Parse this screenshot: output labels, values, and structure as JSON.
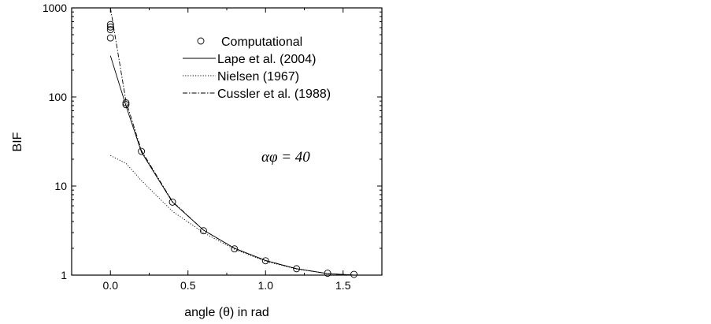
{
  "chart_data": {
    "type": "line",
    "title": "",
    "xlabel": "angle (θ) in rad",
    "ylabel": "BIF",
    "xlim": [
      -0.25,
      1.75
    ],
    "ylim": [
      1,
      1000
    ],
    "yscale": "log",
    "xticks": [
      0.0,
      0.5,
      1.0,
      1.5
    ],
    "xtick_labels": [
      "0.0",
      "0.5",
      "1.0",
      "1.5"
    ],
    "yticks": [
      1,
      10,
      100,
      1000
    ],
    "ytick_labels": [
      "1",
      "10",
      "100",
      "1000"
    ],
    "grid": false,
    "legend_position": "top-center",
    "annotation": "αφ = 40",
    "series": [
      {
        "name": "Computational",
        "style": "open-circle",
        "color": "#000000",
        "points": [
          {
            "x": 0.0,
            "y": 650
          },
          {
            "x": 0.0,
            "y": 610
          },
          {
            "x": 0.0,
            "y": 570
          },
          {
            "x": 0.0,
            "y": 460
          },
          {
            "x": 0.1,
            "y": 86
          },
          {
            "x": 0.1,
            "y": 82
          },
          {
            "x": 0.2,
            "y": 24.5
          },
          {
            "x": 0.4,
            "y": 6.6
          },
          {
            "x": 0.6,
            "y": 3.15
          },
          {
            "x": 0.8,
            "y": 1.97
          },
          {
            "x": 1.0,
            "y": 1.45
          },
          {
            "x": 1.2,
            "y": 1.18
          },
          {
            "x": 1.4,
            "y": 1.05
          },
          {
            "x": 1.57,
            "y": 1.02
          }
        ]
      },
      {
        "name": "Lape et al. (2004)",
        "style": "solid",
        "color": "#000000",
        "points": [
          {
            "x": 0.0,
            "y": 290
          },
          {
            "x": 0.1,
            "y": 80
          },
          {
            "x": 0.2,
            "y": 24
          },
          {
            "x": 0.4,
            "y": 6.6
          },
          {
            "x": 0.6,
            "y": 3.2
          },
          {
            "x": 0.8,
            "y": 2.0
          },
          {
            "x": 1.0,
            "y": 1.46
          },
          {
            "x": 1.2,
            "y": 1.18
          },
          {
            "x": 1.4,
            "y": 1.04
          },
          {
            "x": 1.57,
            "y": 1.0
          }
        ]
      },
      {
        "name": "Nielsen (1967)",
        "style": "dotted",
        "color": "#000000",
        "points": [
          {
            "x": 0.0,
            "y": 22
          },
          {
            "x": 0.1,
            "y": 18
          },
          {
            "x": 0.2,
            "y": 11.5
          },
          {
            "x": 0.4,
            "y": 5.2
          },
          {
            "x": 0.6,
            "y": 3.0
          },
          {
            "x": 0.8,
            "y": 1.95
          },
          {
            "x": 1.0,
            "y": 1.43
          },
          {
            "x": 1.2,
            "y": 1.17
          },
          {
            "x": 1.4,
            "y": 1.04
          },
          {
            "x": 1.57,
            "y": 1.0
          }
        ]
      },
      {
        "name": "Cussler et al. (1988)",
        "style": "dash-dot",
        "color": "#000000",
        "points": [
          {
            "x": 0.0,
            "y": 1000
          },
          {
            "x": 0.1,
            "y": 90
          },
          {
            "x": 0.2,
            "y": 25
          },
          {
            "x": 0.4,
            "y": 6.7
          },
          {
            "x": 0.6,
            "y": 3.2
          },
          {
            "x": 0.8,
            "y": 2.0
          },
          {
            "x": 1.0,
            "y": 1.46
          },
          {
            "x": 1.2,
            "y": 1.18
          },
          {
            "x": 1.4,
            "y": 1.04
          },
          {
            "x": 1.57,
            "y": 1.0
          }
        ]
      }
    ]
  }
}
